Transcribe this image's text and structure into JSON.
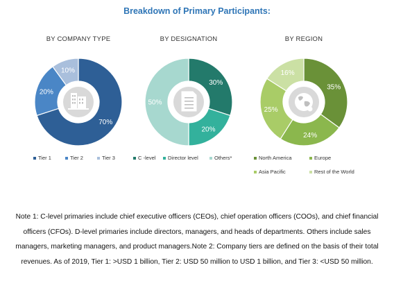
{
  "title": "Breakdown of Primary Participants:",
  "chart_data": [
    {
      "type": "pie",
      "title": "BY COMPANY TYPE",
      "categories": [
        "Tier 1",
        "Tier 2",
        "Tier 3"
      ],
      "values": [
        70,
        20,
        10
      ],
      "value_labels": [
        "70%",
        "20%",
        "10%"
      ],
      "colors": [
        "#2e5f96",
        "#4a86c6",
        "#a9bfdc"
      ],
      "center_icon": "building-icon"
    },
    {
      "type": "pie",
      "title": "BY DESIGNATION",
      "categories": [
        "C -level",
        "Director level",
        "Others*"
      ],
      "values": [
        30,
        20,
        50
      ],
      "value_labels": [
        "30%",
        "20%",
        "50%"
      ],
      "colors": [
        "#237a6b",
        "#33b19c",
        "#a7d8cf"
      ],
      "center_icon": "document-icon"
    },
    {
      "type": "pie",
      "title": "BY REGION",
      "categories": [
        "North America",
        "Europe",
        "Asia Pacific",
        "Rest of the World"
      ],
      "values": [
        35,
        24,
        25,
        16
      ],
      "value_labels": [
        "35%",
        "24%",
        "25%",
        "16%"
      ],
      "colors": [
        "#6a9138",
        "#8bb74d",
        "#a9cc67",
        "#cbe0a4"
      ],
      "center_icon": "globe-icon"
    }
  ],
  "note": "Note 1: C-level primaries include chief executive officers (CEOs), chief operation officers (COOs), and chief financial officers (CFOs). D-level primaries include directors, managers, and heads of departments. Others include sales managers, marketing managers, and product managers.Note 2: Company tiers are defined on the basis of their total revenues. As of 2019, Tier 1: >USD 1 billion, Tier 2: USD 50 million to USD 1 billion, and Tier 3: <USD 50 million."
}
